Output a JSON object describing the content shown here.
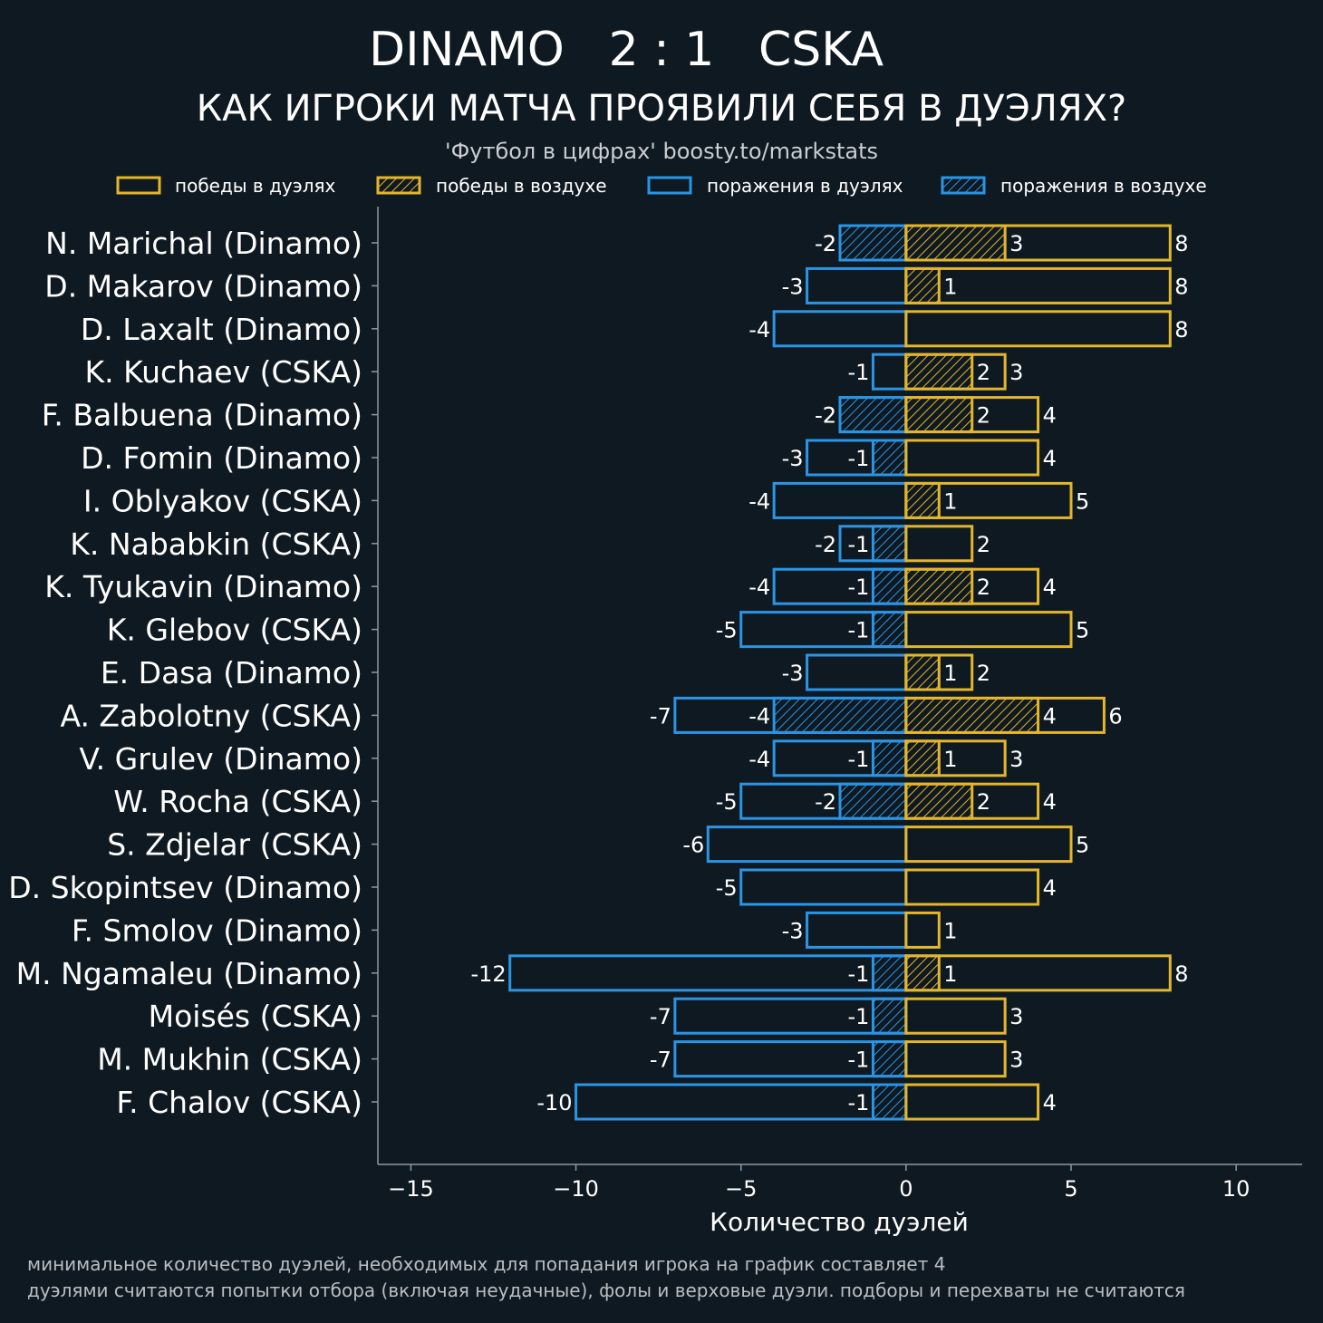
{
  "header": {
    "home_team": "DINAMO",
    "score": "2 : 1",
    "away_team": "CSKA",
    "subtitle": "КАК ИГРОКИ МАТЧА ПРОЯВИЛИ СЕБЯ В ДУЭЛЯХ?",
    "source": "'Футбол в цифрах' boosty.to/markstats"
  },
  "colors": {
    "background": "#0f1921",
    "win": "#e3b62c",
    "loss": "#2a95e5",
    "axis": "#8a9aa3"
  },
  "footnotes": [
    "минимальное количество дуэлей, необходимых для попадания игрока на график составляет 4",
    "дуэлями считаются попытки отбора (включая неудачные), фолы и верховые дуэли. подборы и перехваты не считаются"
  ],
  "chart_data": {
    "type": "bar",
    "orientation": "horizontal",
    "title": "DINAMO 2 : 1 CSKA",
    "xlabel": "Количество дуэлей",
    "ylabel": "",
    "xlim": [
      -16,
      12
    ],
    "xticks": [
      -15,
      -10,
      -5,
      0,
      5,
      10
    ],
    "xtick_labels": [
      "−15",
      "−10",
      "−5",
      "0",
      "5",
      "10"
    ],
    "grid": false,
    "legend": [
      {
        "key": "duel_wins",
        "label": "победы в дуэлях",
        "style": "outline",
        "color": "#e3b62c"
      },
      {
        "key": "aerial_wins",
        "label": "победы в воздухе",
        "style": "hatched",
        "color": "#e3b62c"
      },
      {
        "key": "duel_losses",
        "label": "поражения в дуэлях",
        "style": "outline",
        "color": "#2a95e5"
      },
      {
        "key": "aerial_losses",
        "label": "поражения в воздухе",
        "style": "hatched",
        "color": "#2a95e5"
      }
    ],
    "categories": [
      "N. Marichal (Dinamo)",
      "D. Makarov (Dinamo)",
      "D. Laxalt (Dinamo)",
      "K. Kuchaev (CSKA)",
      "F. Balbuena (Dinamo)",
      "D. Fomin (Dinamo)",
      "I. Oblyakov (CSKA)",
      "K. Nababkin (CSKA)",
      "K. Tyukavin (Dinamo)",
      "K. Glebov (CSKA)",
      "E. Dasa (Dinamo)",
      "A. Zabolotny (CSKA)",
      "V. Grulev (Dinamo)",
      "W. Rocha (CSKA)",
      "S. Zdjelar (CSKA)",
      "D. Skopintsev (Dinamo)",
      "F. Smolov (Dinamo)",
      "M. Ngamaleu (Dinamo)",
      "Moisés (CSKA)",
      "M. Mukhin (CSKA)",
      "F. Chalov (CSKA)"
    ],
    "series": [
      {
        "name": "победы в дуэлях",
        "key": "duel_wins",
        "values": [
          8,
          8,
          8,
          3,
          4,
          4,
          5,
          2,
          4,
          5,
          2,
          6,
          3,
          4,
          5,
          4,
          1,
          8,
          3,
          3,
          4
        ]
      },
      {
        "name": "победы в воздухе",
        "key": "aerial_wins",
        "values": [
          3,
          1,
          0,
          2,
          2,
          0,
          1,
          0,
          2,
          0,
          1,
          4,
          1,
          2,
          0,
          0,
          0,
          1,
          0,
          0,
          0
        ]
      },
      {
        "name": "поражения в дуэлях",
        "key": "duel_losses",
        "values": [
          -2,
          -3,
          -4,
          -1,
          -2,
          -3,
          -4,
          -2,
          -4,
          -5,
          -3,
          -7,
          -4,
          -5,
          -6,
          -5,
          -3,
          -12,
          -7,
          -7,
          -10
        ]
      },
      {
        "name": "поражения в воздухе",
        "key": "aerial_losses",
        "values": [
          -2,
          0,
          0,
          0,
          -2,
          -1,
          0,
          -1,
          -1,
          -1,
          0,
          -4,
          -1,
          -2,
          0,
          0,
          0,
          -1,
          -1,
          -1,
          -1
        ]
      }
    ]
  }
}
